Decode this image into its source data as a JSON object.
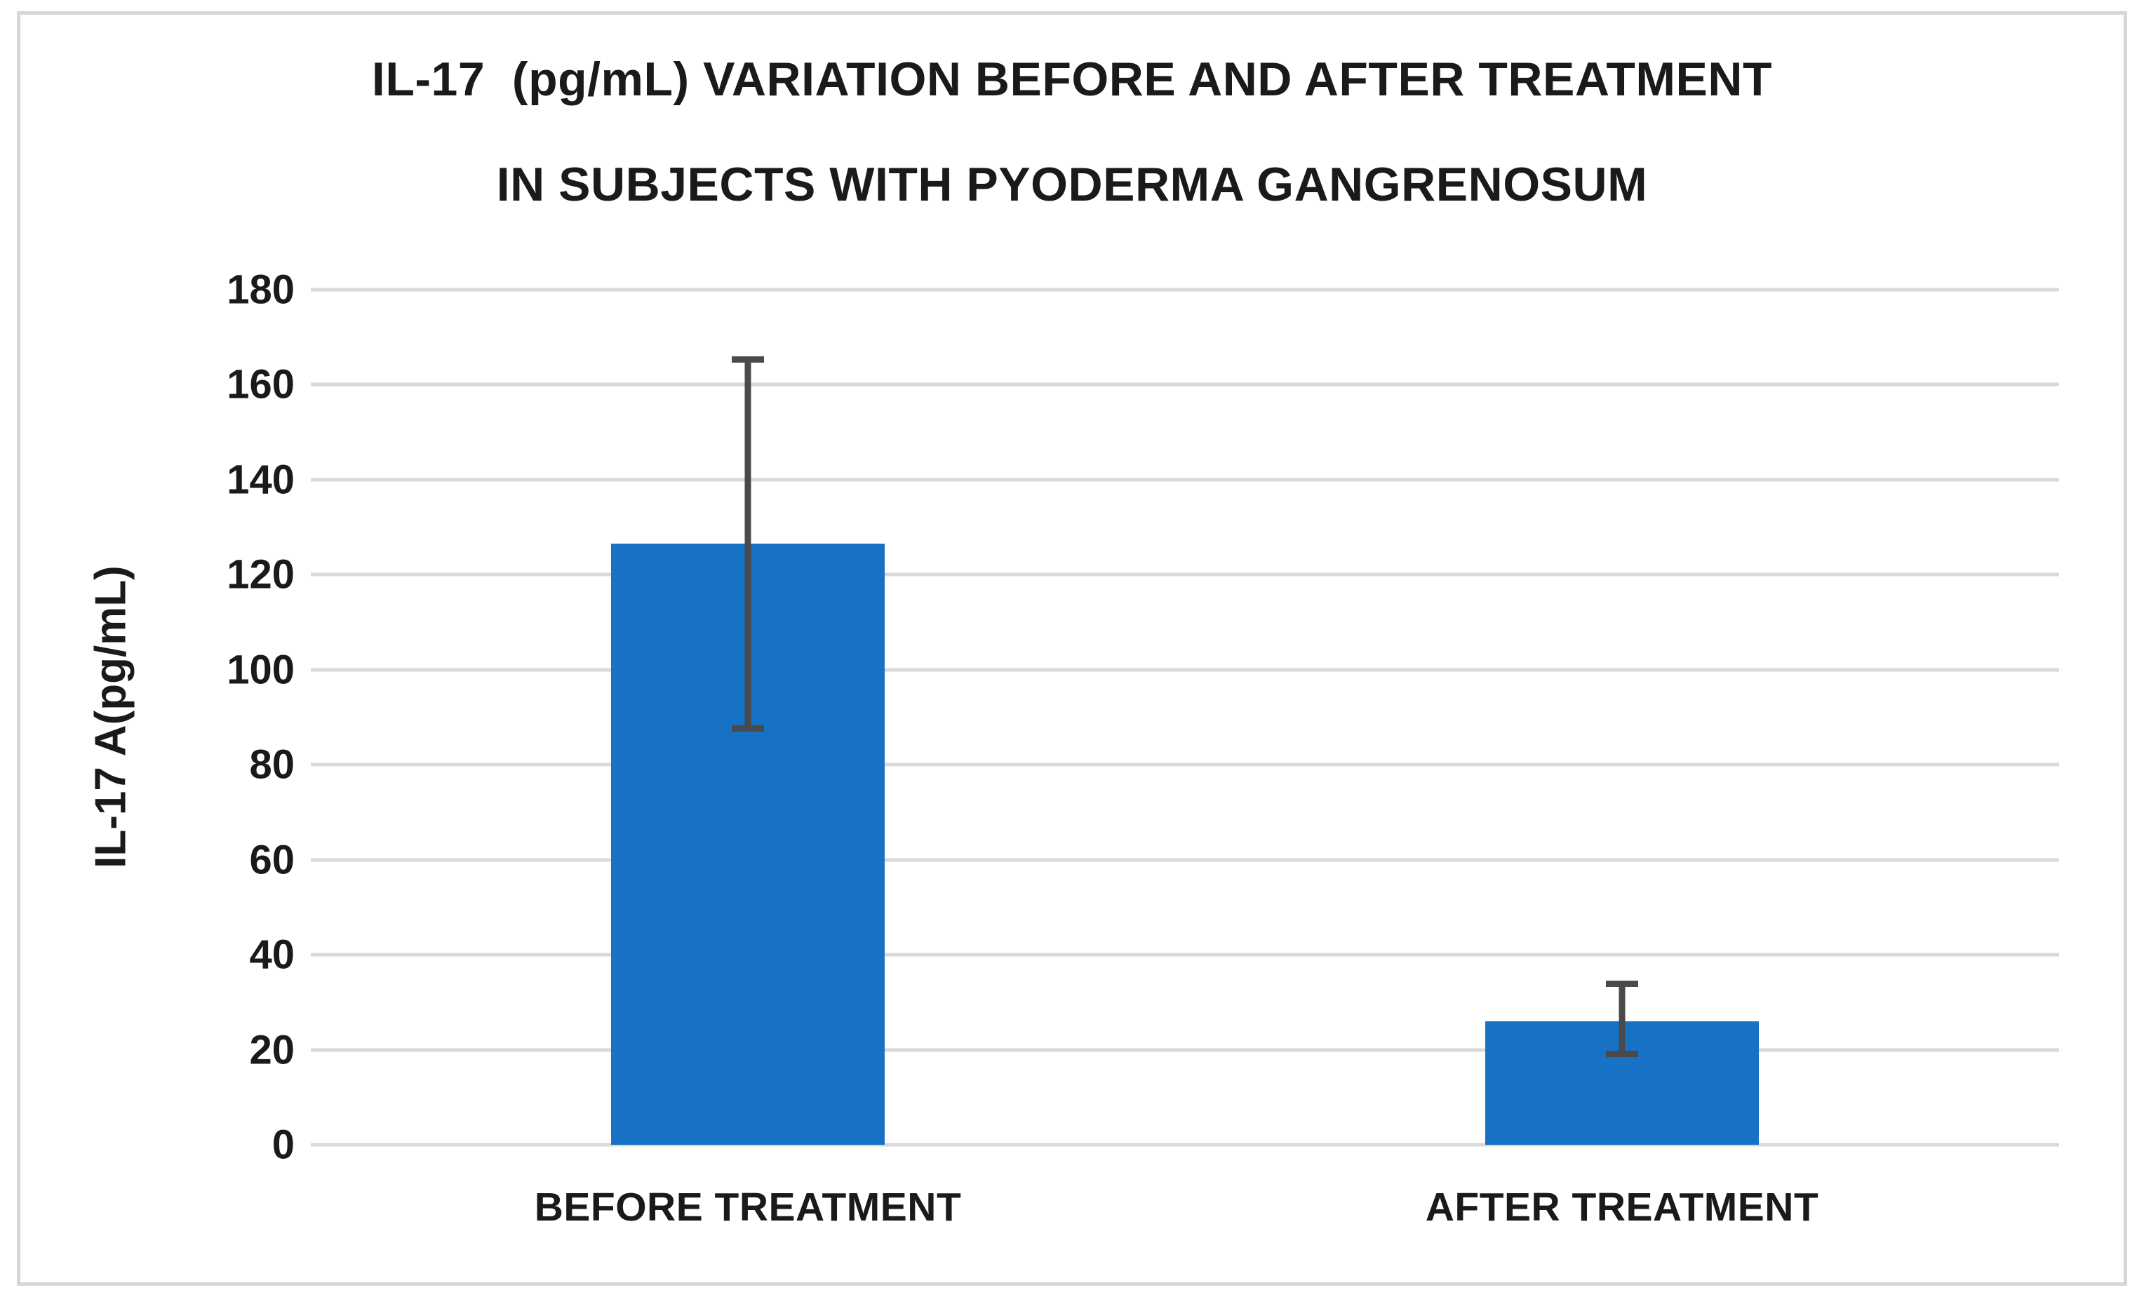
{
  "figure": {
    "title_line1": "IL-17  (pg/mL) VARIATION BEFORE AND AFTER TREATMENT",
    "title_line2": "IN SUBJECTS WITH PYODERMA GANGRENOSUM"
  },
  "chart_data": {
    "type": "bar",
    "title": "IL-17  (pg/mL) VARIATION BEFORE AND AFTER TREATMENT IN SUBJECTS WITH PYODERMA GANGRENOSUM",
    "categories": [
      "BEFORE TREATMENT",
      "AFTER TREATMENT"
    ],
    "values": [
      126.5,
      26
    ],
    "error_bars": {
      "upper": [
        166,
        34.5
      ],
      "lower": [
        87,
        18.5
      ]
    },
    "xlabel": "",
    "ylabel": "IL-17 A(pg/mL)",
    "yticks": [
      180,
      160,
      140,
      120,
      100,
      80,
      60,
      40,
      20,
      0
    ],
    "ylim": [
      0,
      180
    ],
    "grid": true,
    "legend": false,
    "bar_color": "#1772c6",
    "error_color": "#4a4a4a",
    "gridline_color": "#d9d9d9",
    "frame_color": "#d7d7d7",
    "text_color": "#1a1a1a"
  }
}
